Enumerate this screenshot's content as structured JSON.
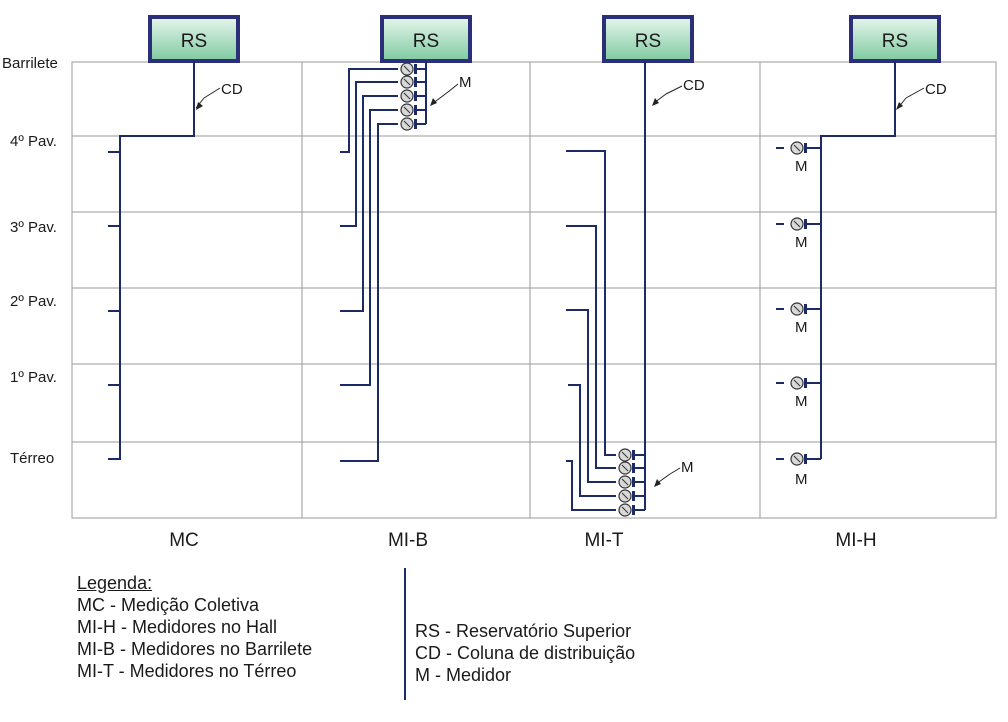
{
  "floors": [
    "Barrilete",
    "4º Pav.",
    "3º Pav.",
    "2º Pav.",
    "1º Pav.",
    "Térreo"
  ],
  "systems": [
    "MC",
    "MI-B",
    "MI-T",
    "MI-H"
  ],
  "tags": {
    "reservoir": "RS",
    "column": "CD",
    "meter": "M"
  },
  "legend": {
    "title": "Legenda:",
    "left_items": [
      "MC - Medição Coletiva",
      "MI-H - Medidores no Hall",
      "MI-B - Medidores no Barrilete",
      "MI-T - Medidores no Térreo"
    ],
    "right_items": [
      "RS - Reservatório Superior",
      "CD - Coluna de distribuição",
      "M - Medidor"
    ]
  },
  "colors": {
    "pipe": "#1c2a66",
    "reservoir_fill_top": "#e6f6ec",
    "reservoir_fill_bottom": "#7fcaa0",
    "reservoir_border": "#2b2f7a",
    "grid": "#9a9a9a"
  }
}
